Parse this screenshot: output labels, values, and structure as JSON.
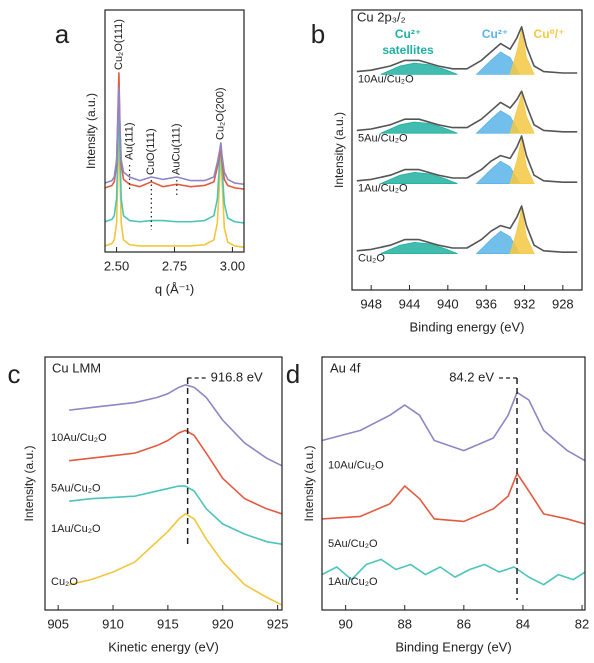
{
  "chart_data": [
    {
      "type": "line",
      "panel": "a",
      "xlabel": "q (Å⁻¹)",
      "ylabel": "Intensity (a.u.)",
      "xlim": [
        2.45,
        3.05
      ],
      "xticks": [
        {
          "value": 2.5,
          "label": "2.50"
        },
        2.75,
        {
          "value": 3.0,
          "label": "3.00"
        }
      ],
      "ylim": [
        0,
        100
      ],
      "x": [
        2.45,
        2.48,
        2.49,
        2.5,
        2.505,
        2.51,
        2.515,
        2.52,
        2.53,
        2.556,
        2.6,
        2.65,
        2.7,
        2.76,
        2.82,
        2.88,
        2.92,
        2.935,
        2.945,
        2.95,
        2.955,
        2.965,
        2.98,
        3.01,
        3.05
      ],
      "series": [
        {
          "color": "#f2c63a",
          "values": [
            2.5,
            3.5,
            5,
            12,
            30,
            55,
            30,
            12,
            5,
            3,
            2.5,
            2.5,
            2.5,
            2.5,
            2.5,
            3,
            5,
            12,
            30,
            42,
            30,
            10,
            4,
            2.5,
            2
          ]
        },
        {
          "color": "#4cc4bc",
          "values": [
            12.5,
            13.5,
            15,
            22,
            40,
            65,
            40,
            22,
            15,
            13,
            12.5,
            13,
            13,
            12.5,
            12.5,
            13,
            15,
            22,
            38,
            45,
            35,
            20,
            14,
            12.5,
            12
          ]
        },
        {
          "color": "#e45a3f",
          "values": [
            26.5,
            27.5,
            29,
            36,
            55,
            74,
            50,
            36,
            30,
            28,
            27,
            29,
            27,
            28,
            27,
            27.5,
            29,
            35,
            40,
            44,
            38,
            30,
            27.5,
            26.5,
            26
          ]
        },
        {
          "color": "#8f86c4",
          "values": [
            28.5,
            29.5,
            31,
            38,
            52,
            68,
            50,
            38,
            33,
            31,
            29.5,
            31,
            30,
            31,
            29.5,
            29.5,
            31,
            37,
            42,
            45,
            40,
            33,
            30,
            28.5,
            28
          ]
        }
      ],
      "annotations": [
        {
          "value": 2.51,
          "label": "Cu₂O(111)"
        },
        {
          "value": 2.556,
          "label": "Au(111)"
        },
        {
          "value": 2.65,
          "label": "CuO(111)"
        },
        {
          "value": 2.76,
          "label": "AuCu(111)"
        },
        {
          "value": 2.95,
          "label": "Cu₂O(200)"
        }
      ]
    },
    {
      "type": "line",
      "panel": "b",
      "title": "Cu 2p₃/₂",
      "xlabel": "Binding energy (eV)",
      "ylabel": "Intensity (a.u.)",
      "xlim": [
        950,
        926
      ],
      "xticks": [
        948,
        944,
        940,
        936,
        932,
        928
      ],
      "ylim": [
        0,
        100
      ],
      "series": [
        {
          "color": "#20b0a0",
          "fill": true,
          "x": [
            947,
            945,
            943.5,
            942,
            940.5,
            939
          ],
          "values": [
            77,
            80,
            81,
            80.5,
            79,
            77
          ]
        },
        {
          "color": "#5ab4e8",
          "fill": true,
          "x": [
            937,
            935.5,
            934.5,
            933.5,
            932.5
          ],
          "values": [
            77,
            82,
            85,
            83,
            77
          ]
        },
        {
          "color": "#f5c842",
          "fill": true,
          "x": [
            933.5,
            932.8,
            932.3,
            931.8,
            931
          ],
          "values": [
            77,
            85,
            93,
            83,
            77
          ]
        },
        {
          "name": "10Au/Cu₂O",
          "color": "#555555",
          "x": [
            949.5,
            948,
            946,
            944.5,
            943,
            941,
            939.5,
            938,
            936.5,
            935.5,
            934.5,
            933.5,
            932.8,
            932.3,
            931.8,
            931,
            930,
            928,
            926.5
          ],
          "values": [
            78,
            78.5,
            80,
            82,
            82,
            80,
            79,
            79,
            82,
            85,
            88,
            86,
            90,
            94,
            87,
            80,
            78,
            77.5,
            77.5
          ]
        },
        {
          "color": "#20b0a0",
          "fill": true,
          "x": [
            947,
            945,
            943.5,
            942,
            940.5,
            939
          ],
          "values": [
            56,
            59,
            60,
            59.5,
            58,
            56
          ]
        },
        {
          "color": "#5ab4e8",
          "fill": true,
          "x": [
            937,
            935.5,
            934.5,
            933.5,
            932.5
          ],
          "values": [
            56,
            61,
            64,
            62,
            56
          ]
        },
        {
          "color": "#f5c842",
          "fill": true,
          "x": [
            933.5,
            932.8,
            932.3,
            931.8,
            931
          ],
          "values": [
            56,
            64,
            70,
            62,
            56
          ]
        },
        {
          "name": "5Au/Cu₂O",
          "color": "#555555",
          "x": [
            949.5,
            948,
            946,
            944.5,
            943,
            941,
            939.5,
            938,
            936.5,
            935.5,
            934.5,
            933.5,
            932.8,
            932.3,
            931.8,
            931,
            930,
            928,
            926.5
          ],
          "values": [
            57,
            57.5,
            59,
            61,
            61,
            59,
            58,
            58,
            61,
            64,
            67,
            65,
            68,
            71,
            66,
            59,
            57,
            56.5,
            56.5
          ]
        },
        {
          "color": "#20b0a0",
          "fill": true,
          "x": [
            947,
            945,
            943.5,
            942,
            940.5,
            939
          ],
          "values": [
            38,
            41,
            42,
            41.5,
            40,
            38
          ]
        },
        {
          "color": "#5ab4e8",
          "fill": true,
          "x": [
            937,
            935.5,
            934.5,
            933.5,
            932.5
          ],
          "values": [
            38,
            43,
            46,
            44,
            38
          ]
        },
        {
          "color": "#f5c842",
          "fill": true,
          "x": [
            933.5,
            932.8,
            932.3,
            931.8,
            931
          ],
          "values": [
            38,
            46,
            54,
            44,
            38
          ]
        },
        {
          "name": "1Au/Cu₂O",
          "color": "#555555",
          "x": [
            949.5,
            948,
            946,
            944.5,
            943,
            941,
            939.5,
            938,
            936.5,
            935.5,
            934.5,
            933.5,
            932.8,
            932.3,
            931.8,
            931,
            930,
            928,
            926.5
          ],
          "values": [
            39,
            39.5,
            41,
            43,
            43,
            41,
            40,
            40,
            43,
            46,
            48,
            47,
            51,
            55,
            48,
            41,
            39,
            38.5,
            38.5
          ]
        },
        {
          "color": "#20b0a0",
          "fill": true,
          "x": [
            947,
            945,
            943.5,
            942,
            940.5,
            939
          ],
          "values": [
            13,
            16,
            17,
            16.5,
            15,
            13
          ]
        },
        {
          "color": "#5ab4e8",
          "fill": true,
          "x": [
            937,
            935.5,
            934.5,
            933.5,
            932.5
          ],
          "values": [
            13,
            18,
            21,
            19,
            13
          ]
        },
        {
          "color": "#f5c842",
          "fill": true,
          "x": [
            933.5,
            932.8,
            932.3,
            931.8,
            931
          ],
          "values": [
            13,
            21,
            29,
            19,
            13
          ]
        },
        {
          "name": "Cu₂O",
          "color": "#555555",
          "x": [
            949.5,
            948,
            946,
            944.5,
            943,
            941,
            939.5,
            938,
            936.5,
            935.5,
            934.5,
            933.5,
            932.8,
            932.3,
            931.8,
            931,
            930,
            928,
            926.5
          ],
          "values": [
            14,
            14.5,
            16,
            18,
            18,
            16,
            15,
            15,
            18,
            21,
            23,
            22,
            26,
            30,
            23,
            16,
            14,
            13.5,
            13.5
          ]
        }
      ],
      "annotations": [
        {
          "label": "Cu²⁺",
          "color": "#20b0a0"
        },
        {
          "label": "satellites",
          "color": "#20b0a0"
        },
        {
          "label": "Cu²⁺",
          "color": "#5ab4e8"
        },
        {
          "label": "Cu⁰/⁺",
          "color": "#f5c842"
        }
      ]
    },
    {
      "type": "line",
      "panel": "c",
      "title": "Cu LMM",
      "xlabel": "Kinetic energy (eV)",
      "ylabel": "Intensity (a.u.)",
      "xlim": [
        903.8,
        925.4
      ],
      "xticks": [
        905,
        910,
        915,
        920,
        925
      ],
      "ylim": [
        0,
        100
      ],
      "x": [
        906,
        908,
        910,
        912,
        914,
        915,
        916,
        916.6,
        917.4,
        918.5,
        920,
        922,
        924,
        925.4
      ],
      "series": [
        {
          "name": "10Au/Cu₂O",
          "color": "#8f86c4",
          "values": [
            79,
            80,
            81,
            82,
            84,
            85.5,
            88,
            89,
            88,
            84,
            75,
            66,
            60,
            57
          ]
        },
        {
          "name": "5Au/Cu₂O",
          "color": "#e45a3f",
          "values": [
            59,
            60,
            61,
            62,
            65,
            67,
            70,
            71,
            69,
            62,
            52,
            44,
            40,
            38
          ]
        },
        {
          "name": "1Au/Cu₂O",
          "color": "#4cc4bc",
          "values": [
            43,
            44,
            44.5,
            45,
            47,
            48,
            49,
            49,
            47,
            40,
            34,
            30,
            27,
            26
          ]
        },
        {
          "name": "Cu₂O",
          "color": "#f2c63a",
          "values": [
            10,
            12,
            15,
            19,
            27,
            31,
            36,
            38,
            36,
            28,
            19,
            10,
            5,
            2
          ]
        }
      ],
      "annotations": [
        {
          "value": 916.8,
          "label": "916.8 eV"
        }
      ]
    },
    {
      "type": "line",
      "panel": "d",
      "title": "Au 4f",
      "xlabel": "Binding Energy (eV)",
      "ylabel": "Intensity (a.u.)",
      "xlim": [
        90.8,
        81.9
      ],
      "xticks": [
        90,
        88,
        86,
        84,
        82
      ],
      "ylim": [
        0,
        100
      ],
      "series": [
        {
          "name": "10Au/Cu₂O",
          "color": "#8f86c4",
          "x": [
            90.8,
            89.5,
            88.5,
            88,
            87.5,
            87,
            86,
            85,
            84.5,
            84.2,
            83.8,
            83.3,
            82.5,
            81.9
          ],
          "values": [
            67,
            71,
            77,
            81,
            77,
            67,
            63,
            68,
            77,
            86,
            83,
            71,
            63,
            59
          ]
        },
        {
          "name": "5Au/Cu₂O",
          "color": "#e45a3f",
          "x": [
            90.8,
            89.5,
            88.5,
            88,
            87.5,
            87,
            86,
            85,
            84.5,
            84.2,
            83.8,
            83.3,
            82.5,
            81.9
          ],
          "values": [
            36,
            37,
            42,
            49,
            44,
            36,
            35,
            40,
            45,
            54,
            47,
            38,
            36,
            34
          ]
        },
        {
          "name": "1Au/Cu₂O",
          "color": "#4cc4bc",
          "x": [
            90.8,
            90.3,
            89.8,
            89.3,
            88.8,
            88.3,
            87.8,
            87.3,
            86.8,
            86.3,
            85.8,
            85.3,
            84.8,
            84.3,
            83.8,
            83.3,
            82.8,
            82.3,
            81.9
          ],
          "values": [
            14,
            17,
            12,
            18,
            20,
            16,
            18,
            14,
            17,
            13,
            16,
            18,
            15,
            17,
            13,
            10,
            14,
            12,
            15
          ]
        }
      ],
      "annotations": [
        {
          "value": 84.2,
          "label": "84.2 eV"
        }
      ]
    }
  ]
}
